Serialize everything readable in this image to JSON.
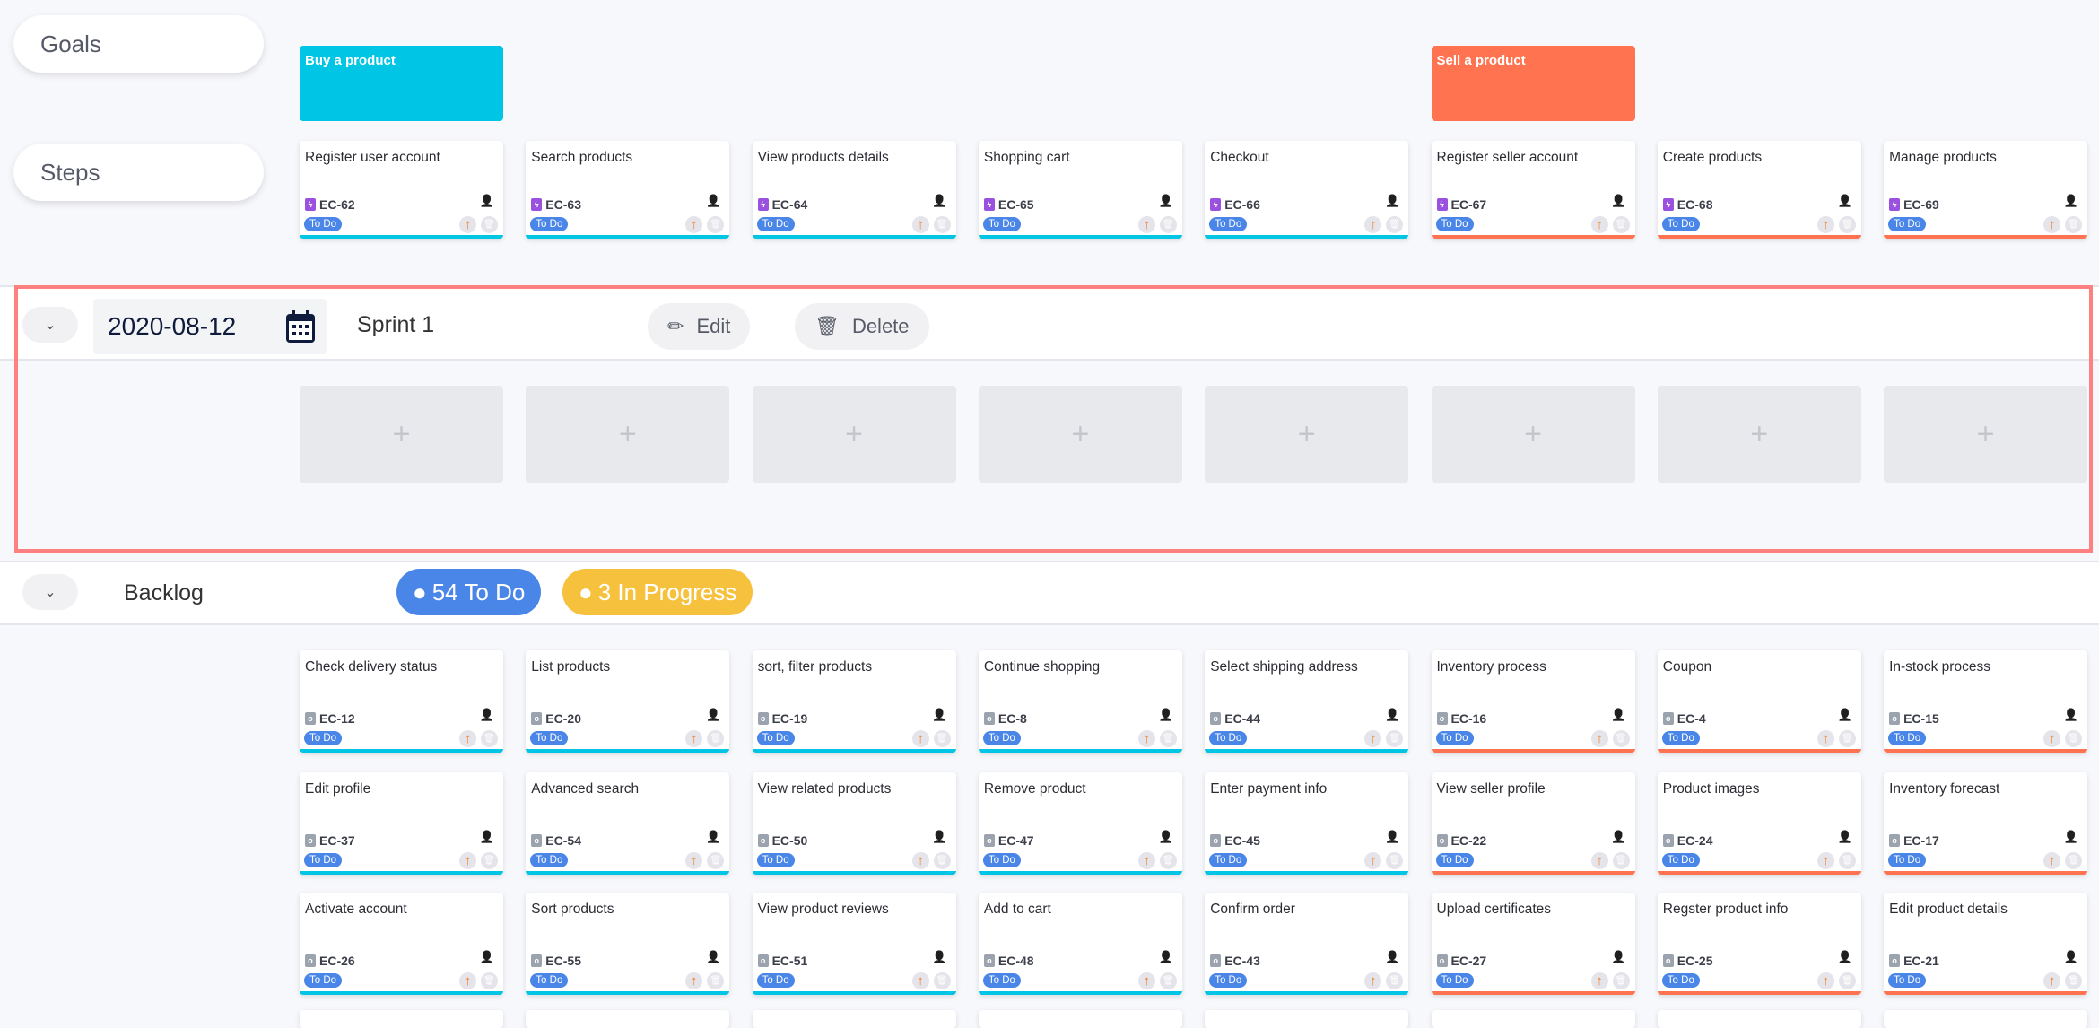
{
  "rows": {
    "goals": "Goals",
    "steps": "Steps"
  },
  "colors": {
    "buy": "#00c5e4",
    "sell": "#ff7350",
    "status_todo": "#4a86e8",
    "in_progress": "#f6c13c",
    "sprint_outline": "#ff8080"
  },
  "goals": [
    {
      "label": "Buy a product",
      "col": 0,
      "color": "#00c5e4"
    },
    {
      "label": "Sell a product",
      "col": 5,
      "color": "#ff7350"
    }
  ],
  "steps": [
    {
      "title": "Register user account",
      "id": "EC-62",
      "status": "To Do"
    },
    {
      "title": "Search products",
      "id": "EC-63",
      "status": "To Do"
    },
    {
      "title": "View products details",
      "id": "EC-64",
      "status": "To Do"
    },
    {
      "title": "Shopping cart",
      "id": "EC-65",
      "status": "To Do"
    },
    {
      "title": "Checkout",
      "id": "EC-66",
      "status": "To Do"
    },
    {
      "title": "Register seller account",
      "id": "EC-67",
      "status": "To Do"
    },
    {
      "title": "Create products",
      "id": "EC-68",
      "status": "To Do"
    },
    {
      "title": "Manage products",
      "id": "EC-69",
      "status": "To Do"
    }
  ],
  "sprint": {
    "date": "2020-08-12",
    "name": "Sprint 1",
    "edit": "Edit",
    "delete": "Delete",
    "add": "+"
  },
  "backlog": {
    "label": "Backlog",
    "todo": "54 To Do",
    "in_progress": "3 In Progress",
    "rows": [
      [
        {
          "title": "Check delivery status",
          "id": "EC-12"
        },
        {
          "title": "List products",
          "id": "EC-20"
        },
        {
          "title": "sort, filter products",
          "id": "EC-19"
        },
        {
          "title": "Continue shopping",
          "id": "EC-8"
        },
        {
          "title": "Select shipping address",
          "id": "EC-44"
        },
        {
          "title": "Inventory process",
          "id": "EC-16"
        },
        {
          "title": "Coupon",
          "id": "EC-4"
        },
        {
          "title": "In-stock process",
          "id": "EC-15"
        }
      ],
      [
        {
          "title": "Edit profile",
          "id": "EC-37"
        },
        {
          "title": "Advanced search",
          "id": "EC-54"
        },
        {
          "title": "View related products",
          "id": "EC-50"
        },
        {
          "title": "Remove product",
          "id": "EC-47"
        },
        {
          "title": "Enter payment info",
          "id": "EC-45"
        },
        {
          "title": "View seller profile",
          "id": "EC-22"
        },
        {
          "title": "Product images",
          "id": "EC-24"
        },
        {
          "title": "Inventory forecast",
          "id": "EC-17"
        }
      ],
      [
        {
          "title": "Activate account",
          "id": "EC-26"
        },
        {
          "title": "Sort products",
          "id": "EC-55"
        },
        {
          "title": "View product reviews",
          "id": "EC-51"
        },
        {
          "title": "Add to cart",
          "id": "EC-48"
        },
        {
          "title": "Confirm order",
          "id": "EC-43"
        },
        {
          "title": "Upload certificates",
          "id": "EC-27"
        },
        {
          "title": "Regster product info",
          "id": "EC-25"
        },
        {
          "title": "Edit product details",
          "id": "EC-21"
        }
      ]
    ],
    "status": "To Do"
  }
}
